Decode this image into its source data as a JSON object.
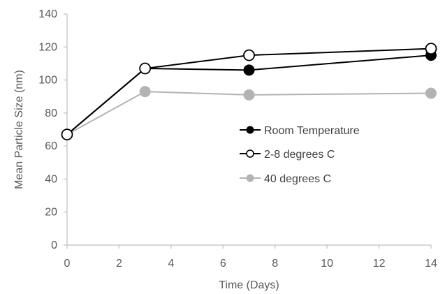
{
  "chart_data": {
    "type": "line",
    "title": "",
    "xlabel": "Time (Days)",
    "ylabel": "Mean Particle Size (nm)",
    "xlim": [
      0,
      14
    ],
    "ylim": [
      0,
      140
    ],
    "xticks": [
      0,
      2,
      4,
      6,
      8,
      10,
      12,
      14
    ],
    "yticks": [
      0,
      20,
      40,
      60,
      80,
      100,
      120,
      140
    ],
    "grid": false,
    "legend_position": "right",
    "series": [
      {
        "name": "Room Temperature",
        "marker": "filled-circle",
        "color": "#000000",
        "x": [
          0,
          3,
          7,
          14
        ],
        "y": [
          67,
          107,
          106,
          115
        ]
      },
      {
        "name": "2-8 degrees C",
        "marker": "open-circle",
        "color": "#000000",
        "x": [
          0,
          3,
          7,
          14
        ],
        "y": [
          67,
          107,
          115,
          119
        ]
      },
      {
        "name": "40 degrees C",
        "marker": "filled-circle",
        "color": "#b3b3b3",
        "x": [
          0,
          3,
          7,
          14
        ],
        "y": [
          67,
          93,
          91,
          92
        ]
      }
    ]
  }
}
